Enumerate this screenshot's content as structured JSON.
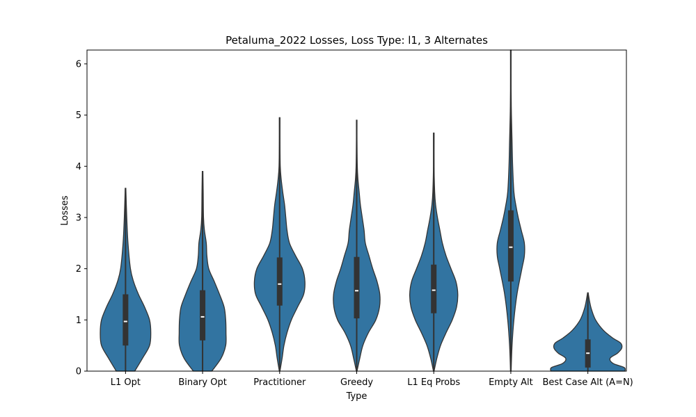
{
  "chart_data": {
    "type": "violin",
    "title": "Petaluma_2022 Losses, Loss Type: l1, 3 Alternates",
    "xlabel": "Type",
    "ylabel": "Losses",
    "ylim": [
      0,
      6.27
    ],
    "yticks": [
      "0",
      "1",
      "2",
      "3",
      "4",
      "5",
      "6"
    ],
    "grid": false,
    "legend": "none",
    "color": "#3274a1",
    "edge_color": "#333333",
    "categories": [
      "L1 Opt",
      "Binary Opt",
      "Practitioner",
      "Greedy",
      "L1 Eq Probs",
      "Empty Alt",
      "Best Case Alt (A=N)"
    ],
    "series": [
      {
        "min": 0,
        "q1": 0.5,
        "median": 0.97,
        "q3": 1.5,
        "max": 3.57,
        "density": [
          [
            0,
            0.3
          ],
          [
            0.25,
            0.55
          ],
          [
            0.5,
            0.78
          ],
          [
            0.75,
            0.82
          ],
          [
            1.0,
            0.78
          ],
          [
            1.25,
            0.62
          ],
          [
            1.5,
            0.42
          ],
          [
            1.75,
            0.26
          ],
          [
            2.0,
            0.16
          ],
          [
            2.5,
            0.08
          ],
          [
            3.0,
            0.04
          ],
          [
            3.57,
            0.01
          ]
        ]
      },
      {
        "min": 0,
        "q1": 0.6,
        "median": 1.06,
        "q3": 1.58,
        "max": 3.9,
        "density": [
          [
            0,
            0.3
          ],
          [
            0.25,
            0.6
          ],
          [
            0.5,
            0.75
          ],
          [
            0.75,
            0.76
          ],
          [
            1.0,
            0.75
          ],
          [
            1.25,
            0.7
          ],
          [
            1.5,
            0.55
          ],
          [
            1.75,
            0.38
          ],
          [
            2.0,
            0.2
          ],
          [
            2.25,
            0.14
          ],
          [
            2.5,
            0.12
          ],
          [
            2.75,
            0.06
          ],
          [
            3.0,
            0.03
          ],
          [
            3.5,
            0.02
          ],
          [
            3.9,
            0.01
          ]
        ]
      },
      {
        "min": 0,
        "q1": 1.28,
        "median": 1.7,
        "q3": 2.22,
        "max": 4.95,
        "density": [
          [
            0,
            0.01
          ],
          [
            0.25,
            0.08
          ],
          [
            0.5,
            0.14
          ],
          [
            0.75,
            0.24
          ],
          [
            1.0,
            0.38
          ],
          [
            1.25,
            0.58
          ],
          [
            1.5,
            0.78
          ],
          [
            1.75,
            0.82
          ],
          [
            2.0,
            0.74
          ],
          [
            2.25,
            0.52
          ],
          [
            2.5,
            0.32
          ],
          [
            2.75,
            0.24
          ],
          [
            3.0,
            0.2
          ],
          [
            3.25,
            0.16
          ],
          [
            3.5,
            0.1
          ],
          [
            3.75,
            0.05
          ],
          [
            4.0,
            0.02
          ],
          [
            4.5,
            0.01
          ],
          [
            4.95,
            0.01
          ]
        ]
      },
      {
        "min": 0,
        "q1": 1.03,
        "median": 1.57,
        "q3": 2.23,
        "max": 4.9,
        "density": [
          [
            0,
            0.01
          ],
          [
            0.25,
            0.1
          ],
          [
            0.5,
            0.2
          ],
          [
            0.75,
            0.38
          ],
          [
            1.0,
            0.62
          ],
          [
            1.25,
            0.74
          ],
          [
            1.5,
            0.75
          ],
          [
            1.75,
            0.66
          ],
          [
            2.0,
            0.52
          ],
          [
            2.25,
            0.4
          ],
          [
            2.5,
            0.28
          ],
          [
            2.75,
            0.24
          ],
          [
            3.0,
            0.18
          ],
          [
            3.25,
            0.12
          ],
          [
            3.5,
            0.08
          ],
          [
            3.75,
            0.04
          ],
          [
            4.0,
            0.02
          ],
          [
            4.5,
            0.01
          ],
          [
            4.9,
            0.01
          ]
        ]
      },
      {
        "min": 0,
        "q1": 1.13,
        "median": 1.58,
        "q3": 2.08,
        "max": 4.65,
        "density": [
          [
            0,
            0.01
          ],
          [
            0.25,
            0.1
          ],
          [
            0.5,
            0.22
          ],
          [
            0.75,
            0.4
          ],
          [
            1.0,
            0.6
          ],
          [
            1.25,
            0.74
          ],
          [
            1.5,
            0.78
          ],
          [
            1.75,
            0.72
          ],
          [
            2.0,
            0.56
          ],
          [
            2.25,
            0.4
          ],
          [
            2.5,
            0.28
          ],
          [
            2.75,
            0.2
          ],
          [
            3.0,
            0.12
          ],
          [
            3.25,
            0.06
          ],
          [
            3.5,
            0.03
          ],
          [
            4.0,
            0.01
          ],
          [
            4.65,
            0.01
          ]
        ]
      },
      {
        "min": 0,
        "q1": 1.75,
        "median": 2.42,
        "q3": 3.14,
        "max": 6.27,
        "density": [
          [
            0,
            0.01
          ],
          [
            0.5,
            0.04
          ],
          [
            1.0,
            0.1
          ],
          [
            1.5,
            0.2
          ],
          [
            2.0,
            0.36
          ],
          [
            2.25,
            0.44
          ],
          [
            2.5,
            0.44
          ],
          [
            2.75,
            0.34
          ],
          [
            3.0,
            0.24
          ],
          [
            3.25,
            0.16
          ],
          [
            3.5,
            0.1
          ],
          [
            4.0,
            0.06
          ],
          [
            4.5,
            0.04
          ],
          [
            5.0,
            0.02
          ],
          [
            5.5,
            0.01
          ],
          [
            6.27,
            0.01
          ]
        ]
      },
      {
        "min": 0,
        "q1": 0.07,
        "median": 0.35,
        "q3": 0.62,
        "max": 1.53,
        "density": [
          [
            0,
            1.2
          ],
          [
            0.07,
            1.18
          ],
          [
            0.15,
            0.82
          ],
          [
            0.25,
            0.72
          ],
          [
            0.35,
            0.96
          ],
          [
            0.45,
            1.1
          ],
          [
            0.55,
            1.06
          ],
          [
            0.65,
            0.8
          ],
          [
            0.8,
            0.5
          ],
          [
            1.0,
            0.25
          ],
          [
            1.2,
            0.12
          ],
          [
            1.35,
            0.06
          ],
          [
            1.53,
            0.01
          ]
        ]
      }
    ]
  }
}
